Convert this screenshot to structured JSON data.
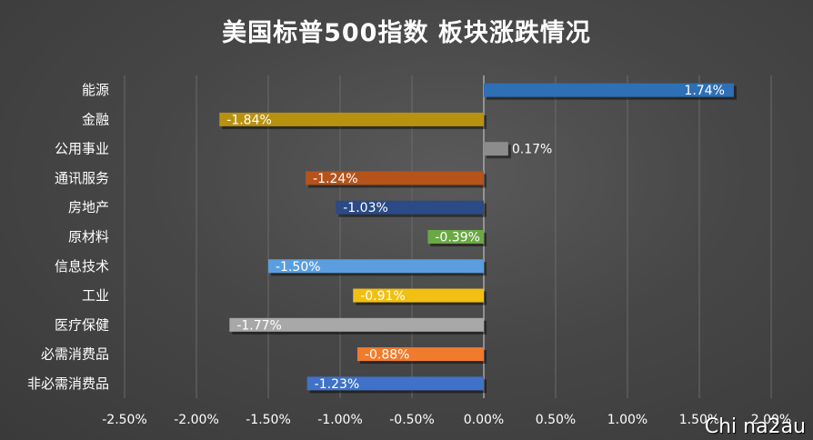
{
  "title": "美国标普500指数 板块涨跌情况",
  "watermark": "Chi na2au",
  "chart_data": {
    "type": "bar",
    "orientation": "horizontal",
    "title": "美国标普500指数 板块涨跌情况",
    "xlabel": "",
    "ylabel": "",
    "xlim": [
      -0.025,
      0.02
    ],
    "x_ticks": [
      "-2.50%",
      "-2.00%",
      "-1.50%",
      "-1.00%",
      "-0.50%",
      "0.00%",
      "0.50%",
      "1.00%",
      "1.50%",
      "2.00%"
    ],
    "grid": true,
    "categories": [
      "能源",
      "金融",
      "公用事业",
      "通讯服务",
      "房地产",
      "原材料",
      "信息技术",
      "工业",
      "医疗保健",
      "必需消费品",
      "非必需消费品"
    ],
    "values": [
      0.0174,
      -0.0184,
      0.0017,
      -0.0124,
      -0.0103,
      -0.0039,
      -0.015,
      -0.0091,
      -0.0177,
      -0.0088,
      -0.0123
    ],
    "value_labels": [
      "1.74%",
      "-1.84%",
      "0.17%",
      "-1.24%",
      "-1.03%",
      "-0.39%",
      "-1.50%",
      "-0.91%",
      "-1.77%",
      "-0.88%",
      "-1.23%"
    ],
    "colors": [
      "#2e6fb6",
      "#b8920f",
      "#8c8c8c",
      "#b5531b",
      "#2b4a86",
      "#6aa844",
      "#5a9ee0",
      "#f2c012",
      "#a8a8a8",
      "#f07b2c",
      "#3f72c8"
    ]
  }
}
